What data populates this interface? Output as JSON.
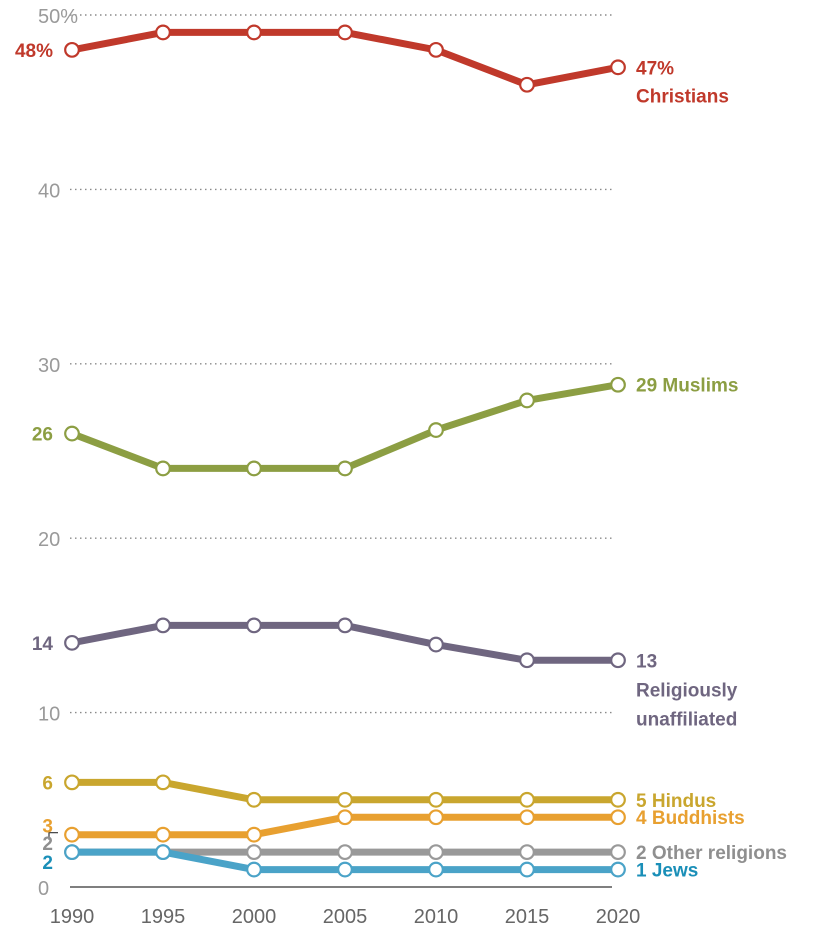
{
  "chart_data": {
    "type": "line",
    "x": [
      1990,
      1995,
      2000,
      2005,
      2010,
      2015,
      2020
    ],
    "x_tick_labels": [
      "1990",
      "1995",
      "2000",
      "2005",
      "2010",
      "2015",
      "2020"
    ],
    "y_tick_labels": [
      "0",
      "10",
      "20",
      "30",
      "40",
      "50%"
    ],
    "y_ticks": [
      0,
      10,
      20,
      30,
      40,
      50
    ],
    "ylim": [
      0,
      50
    ],
    "xlim": [
      1990,
      2020
    ],
    "grid": "horizontal dotted",
    "legend": "direct labels at line ends",
    "series": [
      {
        "name": "Christians",
        "color": "#c0392b",
        "values": [
          48,
          49,
          49,
          49,
          48,
          46,
          47
        ],
        "start_label": "48%",
        "end_value_label": "47%",
        "end_name_label": "Christians"
      },
      {
        "name": "Muslims",
        "color": "#8c9e43",
        "values": [
          26,
          24,
          24,
          24,
          26.2,
          27.9,
          28.8
        ],
        "start_label": "26",
        "end_value_label": "29",
        "end_name_label": "Muslims"
      },
      {
        "name": "Religiously unaffiliated",
        "color": "#6f6680",
        "values": [
          14,
          15,
          15,
          15,
          13.9,
          13,
          13
        ],
        "start_label": "14",
        "end_value_label": "13",
        "end_name_label": "Religiously",
        "end_name_label_2": "unaffiliated"
      },
      {
        "name": "Hindus",
        "color": "#c9a62e",
        "values": [
          6,
          6,
          5,
          5,
          5,
          5,
          5
        ],
        "start_label": "6",
        "end_value_label": "5",
        "end_name_label": "Hindus"
      },
      {
        "name": "Buddhists",
        "color": "#e8a030",
        "values": [
          3,
          3,
          3,
          4,
          4,
          4,
          4
        ],
        "start_label": "3",
        "end_value_label": "4",
        "end_name_label": "Buddhists"
      },
      {
        "name": "Other religions",
        "color": "#999999",
        "values": [
          2,
          2,
          2,
          2,
          2,
          2,
          2
        ],
        "start_label": "2",
        "end_value_label": "2",
        "end_name_label": "Other religions"
      },
      {
        "name": "Jews",
        "color": "#4aa3c8",
        "values": [
          2,
          2,
          1,
          1,
          1,
          1,
          1
        ],
        "start_label": "2",
        "end_value_label": "1",
        "end_name_label": "Jews"
      }
    ],
    "label_colors": {
      "Christians": "#c0392b",
      "Muslims": "#8c9e43",
      "Religiously unaffiliated": "#6f6680",
      "Hindus": "#c9a62e",
      "Buddhists": "#e8a030",
      "Other religions": "#8f8f8f",
      "Jews": "#1a8fb8"
    }
  }
}
